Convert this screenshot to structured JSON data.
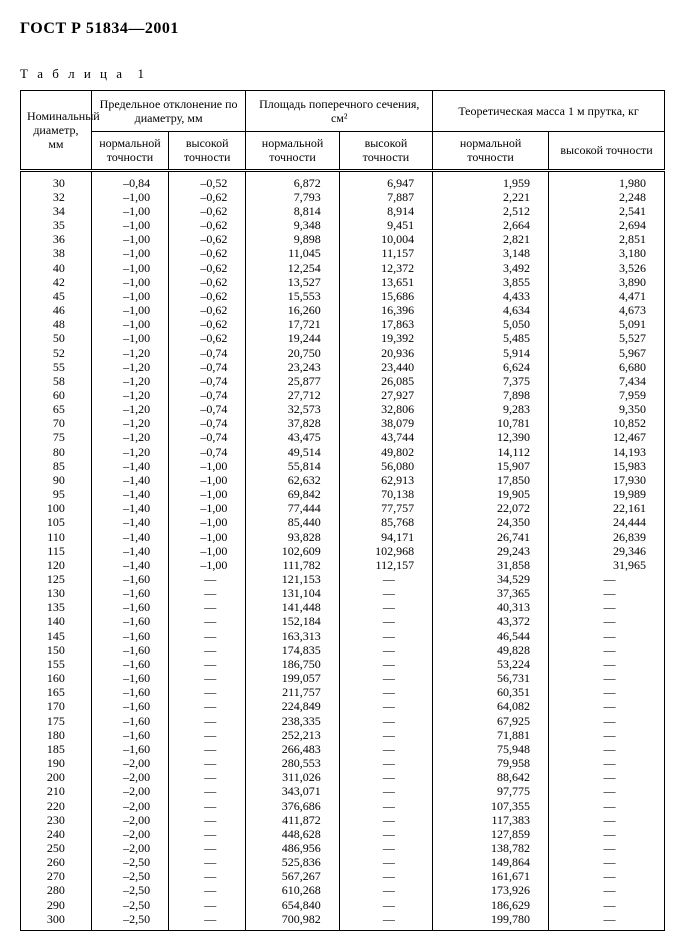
{
  "doc_title": "ГОСТ Р 51834—2001",
  "table_label": "Т а б л и ц а  1",
  "headers": {
    "col0": "Номинальный диаметр, мм",
    "grp1": "Предельное отклонение по диаметру, мм",
    "grp2": "Площадь поперечного сечения, см²",
    "grp3": "Теоретическая масса 1 м прутка, кг",
    "sub_normal": "нормальной точности",
    "sub_high": "высокой точности"
  },
  "dash": "—",
  "rows": [
    {
      "d": "30",
      "dn": "–0,84",
      "dh": "–0,52",
      "an": "6,872",
      "ah": "6,947",
      "mn": "1,959",
      "mh": "1,980"
    },
    {
      "d": "32",
      "dn": "–1,00",
      "dh": "–0,62",
      "an": "7,793",
      "ah": "7,887",
      "mn": "2,221",
      "mh": "2,248"
    },
    {
      "d": "34",
      "dn": "–1,00",
      "dh": "–0,62",
      "an": "8,814",
      "ah": "8,914",
      "mn": "2,512",
      "mh": "2,541"
    },
    {
      "d": "35",
      "dn": "–1,00",
      "dh": "–0,62",
      "an": "9,348",
      "ah": "9,451",
      "mn": "2,664",
      "mh": "2,694"
    },
    {
      "d": "36",
      "dn": "–1,00",
      "dh": "–0,62",
      "an": "9,898",
      "ah": "10,004",
      "mn": "2,821",
      "mh": "2,851"
    },
    {
      "d": "38",
      "dn": "–1,00",
      "dh": "–0,62",
      "an": "11,045",
      "ah": "11,157",
      "mn": "3,148",
      "mh": "3,180"
    },
    {
      "d": "40",
      "dn": "–1,00",
      "dh": "–0,62",
      "an": "12,254",
      "ah": "12,372",
      "mn": "3,492",
      "mh": "3,526"
    },
    {
      "d": "42",
      "dn": "–1,00",
      "dh": "–0,62",
      "an": "13,527",
      "ah": "13,651",
      "mn": "3,855",
      "mh": "3,890"
    },
    {
      "d": "45",
      "dn": "–1,00",
      "dh": "–0,62",
      "an": "15,553",
      "ah": "15,686",
      "mn": "4,433",
      "mh": "4,471"
    },
    {
      "d": "46",
      "dn": "–1,00",
      "dh": "–0,62",
      "an": "16,260",
      "ah": "16,396",
      "mn": "4,634",
      "mh": "4,673"
    },
    {
      "d": "48",
      "dn": "–1,00",
      "dh": "–0,62",
      "an": "17,721",
      "ah": "17,863",
      "mn": "5,050",
      "mh": "5,091"
    },
    {
      "d": "50",
      "dn": "–1,00",
      "dh": "–0,62",
      "an": "19,244",
      "ah": "19,392",
      "mn": "5,485",
      "mh": "5,527"
    },
    {
      "d": "52",
      "dn": "–1,20",
      "dh": "–0,74",
      "an": "20,750",
      "ah": "20,936",
      "mn": "5,914",
      "mh": "5,967"
    },
    {
      "d": "55",
      "dn": "–1,20",
      "dh": "–0,74",
      "an": "23,243",
      "ah": "23,440",
      "mn": "6,624",
      "mh": "6,680"
    },
    {
      "d": "58",
      "dn": "–1,20",
      "dh": "–0,74",
      "an": "25,877",
      "ah": "26,085",
      "mn": "7,375",
      "mh": "7,434"
    },
    {
      "d": "60",
      "dn": "–1,20",
      "dh": "–0,74",
      "an": "27,712",
      "ah": "27,927",
      "mn": "7,898",
      "mh": "7,959"
    },
    {
      "d": "65",
      "dn": "–1,20",
      "dh": "–0,74",
      "an": "32,573",
      "ah": "32,806",
      "mn": "9,283",
      "mh": "9,350"
    },
    {
      "d": "70",
      "dn": "–1,20",
      "dh": "–0,74",
      "an": "37,828",
      "ah": "38,079",
      "mn": "10,781",
      "mh": "10,852"
    },
    {
      "d": "75",
      "dn": "–1,20",
      "dh": "–0,74",
      "an": "43,475",
      "ah": "43,744",
      "mn": "12,390",
      "mh": "12,467"
    },
    {
      "d": "80",
      "dn": "–1,20",
      "dh": "–0,74",
      "an": "49,514",
      "ah": "49,802",
      "mn": "14,112",
      "mh": "14,193"
    },
    {
      "d": "85",
      "dn": "–1,40",
      "dh": "–1,00",
      "an": "55,814",
      "ah": "56,080",
      "mn": "15,907",
      "mh": "15,983"
    },
    {
      "d": "90",
      "dn": "–1,40",
      "dh": "–1,00",
      "an": "62,632",
      "ah": "62,913",
      "mn": "17,850",
      "mh": "17,930"
    },
    {
      "d": "95",
      "dn": "–1,40",
      "dh": "–1,00",
      "an": "69,842",
      "ah": "70,138",
      "mn": "19,905",
      "mh": "19,989"
    },
    {
      "d": "100",
      "dn": "–1,40",
      "dh": "–1,00",
      "an": "77,444",
      "ah": "77,757",
      "mn": "22,072",
      "mh": "22,161"
    },
    {
      "d": "105",
      "dn": "–1,40",
      "dh": "–1,00",
      "an": "85,440",
      "ah": "85,768",
      "mn": "24,350",
      "mh": "24,444"
    },
    {
      "d": "110",
      "dn": "–1,40",
      "dh": "–1,00",
      "an": "93,828",
      "ah": "94,171",
      "mn": "26,741",
      "mh": "26,839"
    },
    {
      "d": "115",
      "dn": "–1,40",
      "dh": "–1,00",
      "an": "102,609",
      "ah": "102,968",
      "mn": "29,243",
      "mh": "29,346"
    },
    {
      "d": "120",
      "dn": "–1,40",
      "dh": "–1,00",
      "an": "111,782",
      "ah": "112,157",
      "mn": "31,858",
      "mh": "31,965"
    },
    {
      "d": "125",
      "dn": "–1,60",
      "dh": null,
      "an": "121,153",
      "ah": null,
      "mn": "34,529",
      "mh": null
    },
    {
      "d": "130",
      "dn": "–1,60",
      "dh": null,
      "an": "131,104",
      "ah": null,
      "mn": "37,365",
      "mh": null
    },
    {
      "d": "135",
      "dn": "–1,60",
      "dh": null,
      "an": "141,448",
      "ah": null,
      "mn": "40,313",
      "mh": null
    },
    {
      "d": "140",
      "dn": "–1,60",
      "dh": null,
      "an": "152,184",
      "ah": null,
      "mn": "43,372",
      "mh": null
    },
    {
      "d": "145",
      "dn": "–1,60",
      "dh": null,
      "an": "163,313",
      "ah": null,
      "mn": "46,544",
      "mh": null
    },
    {
      "d": "150",
      "dn": "–1,60",
      "dh": null,
      "an": "174,835",
      "ah": null,
      "mn": "49,828",
      "mh": null
    },
    {
      "d": "155",
      "dn": "–1,60",
      "dh": null,
      "an": "186,750",
      "ah": null,
      "mn": "53,224",
      "mh": null
    },
    {
      "d": "160",
      "dn": "–1,60",
      "dh": null,
      "an": "199,057",
      "ah": null,
      "mn": "56,731",
      "mh": null
    },
    {
      "d": "165",
      "dn": "–1,60",
      "dh": null,
      "an": "211,757",
      "ah": null,
      "mn": "60,351",
      "mh": null
    },
    {
      "d": "170",
      "dn": "–1,60",
      "dh": null,
      "an": "224,849",
      "ah": null,
      "mn": "64,082",
      "mh": null
    },
    {
      "d": "175",
      "dn": "–1,60",
      "dh": null,
      "an": "238,335",
      "ah": null,
      "mn": "67,925",
      "mh": null
    },
    {
      "d": "180",
      "dn": "–1,60",
      "dh": null,
      "an": "252,213",
      "ah": null,
      "mn": "71,881",
      "mh": null
    },
    {
      "d": "185",
      "dn": "–1,60",
      "dh": null,
      "an": "266,483",
      "ah": null,
      "mn": "75,948",
      "mh": null
    },
    {
      "d": "190",
      "dn": "–2,00",
      "dh": null,
      "an": "280,553",
      "ah": null,
      "mn": "79,958",
      "mh": null
    },
    {
      "d": "200",
      "dn": "–2,00",
      "dh": null,
      "an": "311,026",
      "ah": null,
      "mn": "88,642",
      "mh": null
    },
    {
      "d": "210",
      "dn": "–2,00",
      "dh": null,
      "an": "343,071",
      "ah": null,
      "mn": "97,775",
      "mh": null
    },
    {
      "d": "220",
      "dn": "–2,00",
      "dh": null,
      "an": "376,686",
      "ah": null,
      "mn": "107,355",
      "mh": null
    },
    {
      "d": "230",
      "dn": "–2,00",
      "dh": null,
      "an": "411,872",
      "ah": null,
      "mn": "117,383",
      "mh": null
    },
    {
      "d": "240",
      "dn": "–2,00",
      "dh": null,
      "an": "448,628",
      "ah": null,
      "mn": "127,859",
      "mh": null
    },
    {
      "d": "250",
      "dn": "–2,00",
      "dh": null,
      "an": "486,956",
      "ah": null,
      "mn": "138,782",
      "mh": null
    },
    {
      "d": "260",
      "dn": "–2,50",
      "dh": null,
      "an": "525,836",
      "ah": null,
      "mn": "149,864",
      "mh": null
    },
    {
      "d": "270",
      "dn": "–2,50",
      "dh": null,
      "an": "567,267",
      "ah": null,
      "mn": "161,671",
      "mh": null
    },
    {
      "d": "280",
      "dn": "–2,50",
      "dh": null,
      "an": "610,268",
      "ah": null,
      "mn": "173,926",
      "mh": null
    },
    {
      "d": "290",
      "dn": "–2,50",
      "dh": null,
      "an": "654,840",
      "ah": null,
      "mn": "186,629",
      "mh": null
    },
    {
      "d": "300",
      "dn": "–2,50",
      "dh": null,
      "an": "700,982",
      "ah": null,
      "mn": "199,780",
      "mh": null
    }
  ]
}
